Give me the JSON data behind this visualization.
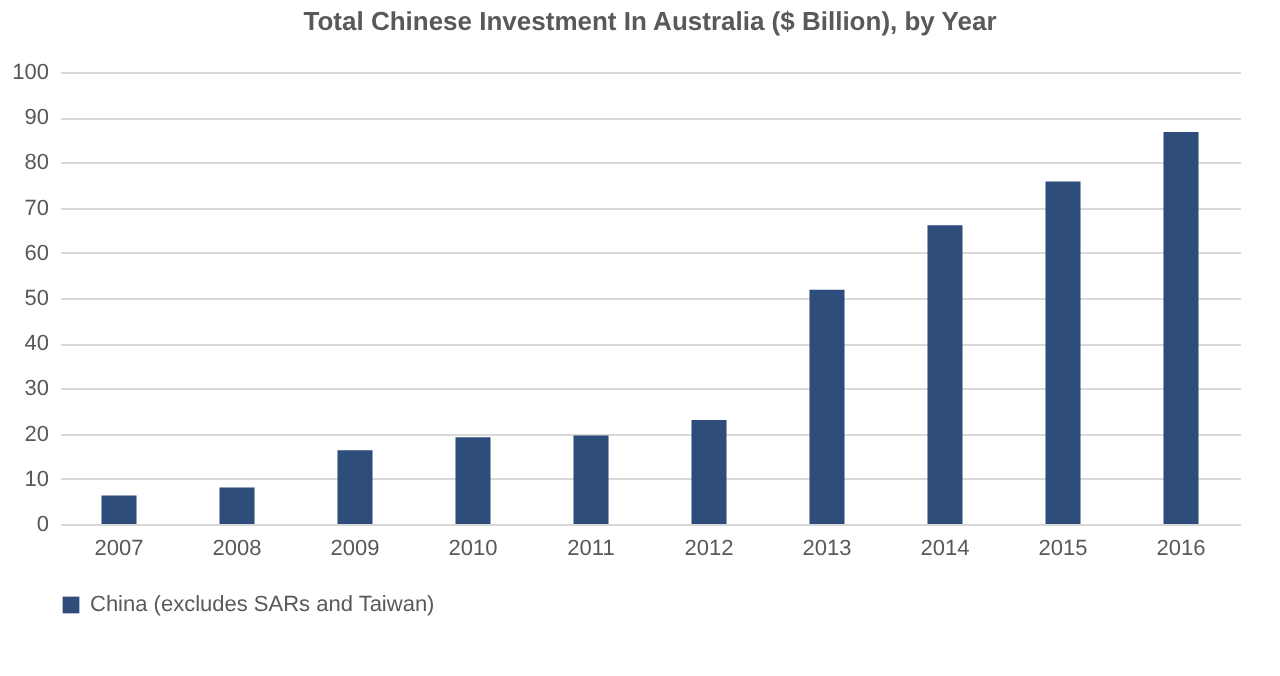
{
  "chart_data": {
    "type": "bar",
    "title": "Total Chinese Investment In Australia ($ Billion), by Year",
    "categories": [
      "2007",
      "2008",
      "2009",
      "2010",
      "2011",
      "2012",
      "2013",
      "2014",
      "2015",
      "2016"
    ],
    "series": [
      {
        "name": "China (excludes SARs and Taiwan)",
        "color": "#2e4d7b",
        "values": [
          6.3,
          8.1,
          16.3,
          19.2,
          19.6,
          23.0,
          51.8,
          66.1,
          75.8,
          86.7
        ]
      }
    ],
    "ylim": [
      0,
      100
    ],
    "yticks": [
      0,
      10,
      20,
      30,
      40,
      50,
      60,
      70,
      80,
      90,
      100
    ],
    "grid": "y",
    "legend": "bottom"
  }
}
